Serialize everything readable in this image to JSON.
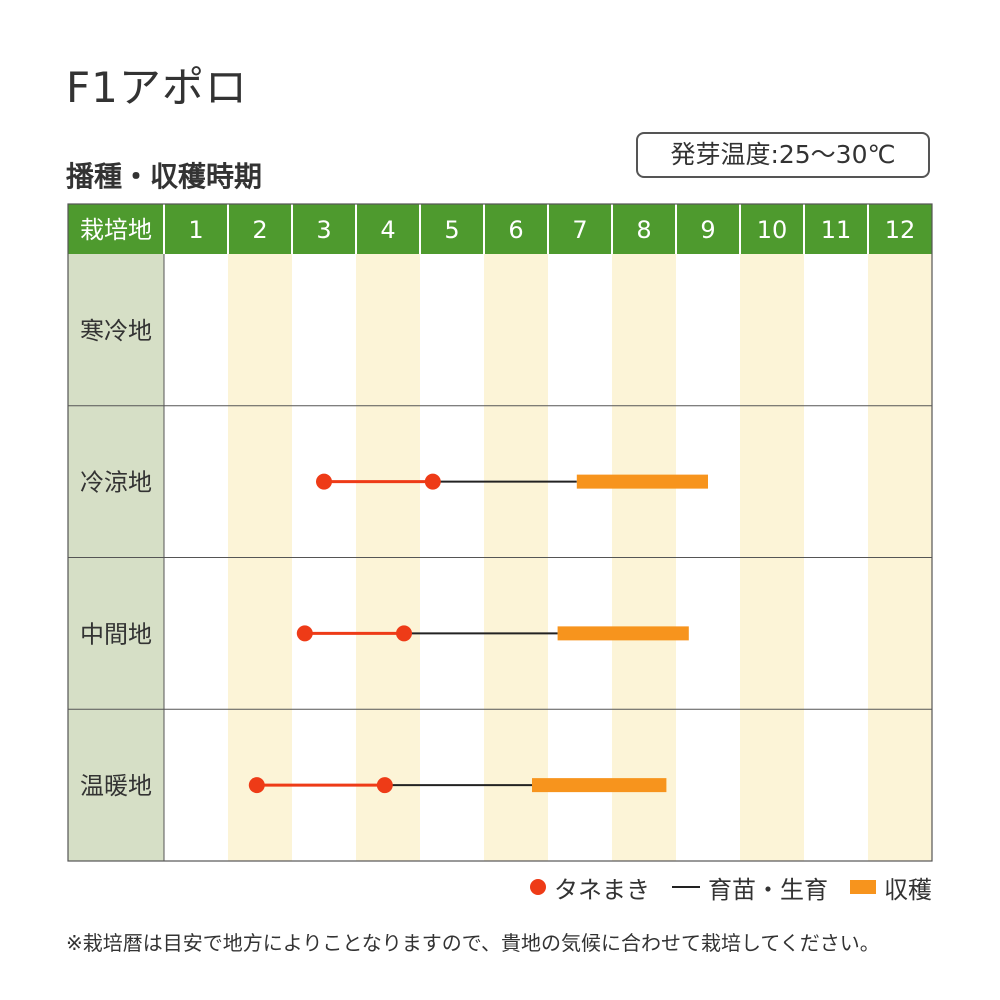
{
  "page": {
    "title": "F1アポロ",
    "subtitle": "播種・収穫時期",
    "temperature_badge": "発芽温度:25〜30℃",
    "note": "※栽培暦は目安で地方によりことなりますので、貴地の気候に合わせて栽培してください。"
  },
  "colors": {
    "header_green": "#4e9a2e",
    "region_column": "#d6dfc6",
    "month_stripe": "#fcf4d7",
    "sowing_red": "#ee3b17",
    "growing_line": "#222222",
    "harvest_orange": "#f7941d",
    "grid_line": "#555555"
  },
  "chart_data": {
    "type": "gantt",
    "header_label": "栽培地",
    "months": [
      "1",
      "2",
      "3",
      "4",
      "5",
      "6",
      "7",
      "8",
      "9",
      "10",
      "11",
      "12"
    ],
    "x_unit": "month",
    "rows": [
      {
        "region": "寒冷地",
        "sowing": null,
        "growing": null,
        "harvest": null
      },
      {
        "region": "冷涼地",
        "sowing": [
          3.5,
          5.2
        ],
        "growing": [
          5.2,
          7.45
        ],
        "harvest": [
          7.45,
          9.5
        ]
      },
      {
        "region": "中間地",
        "sowing": [
          3.2,
          4.75
        ],
        "growing": [
          4.75,
          7.15
        ],
        "harvest": [
          7.15,
          9.2
        ]
      },
      {
        "region": "温暖地",
        "sowing": [
          2.45,
          4.45
        ],
        "growing": [
          4.45,
          6.75
        ],
        "harvest": [
          6.75,
          8.85
        ]
      }
    ],
    "legend": [
      {
        "key": "sowing",
        "label": "タネまき",
        "icon": "red-dot-icon"
      },
      {
        "key": "growing",
        "label": "育苗・生育",
        "icon": "black-line-icon"
      },
      {
        "key": "harvest",
        "label": "収穫",
        "icon": "orange-bar-icon"
      }
    ]
  }
}
